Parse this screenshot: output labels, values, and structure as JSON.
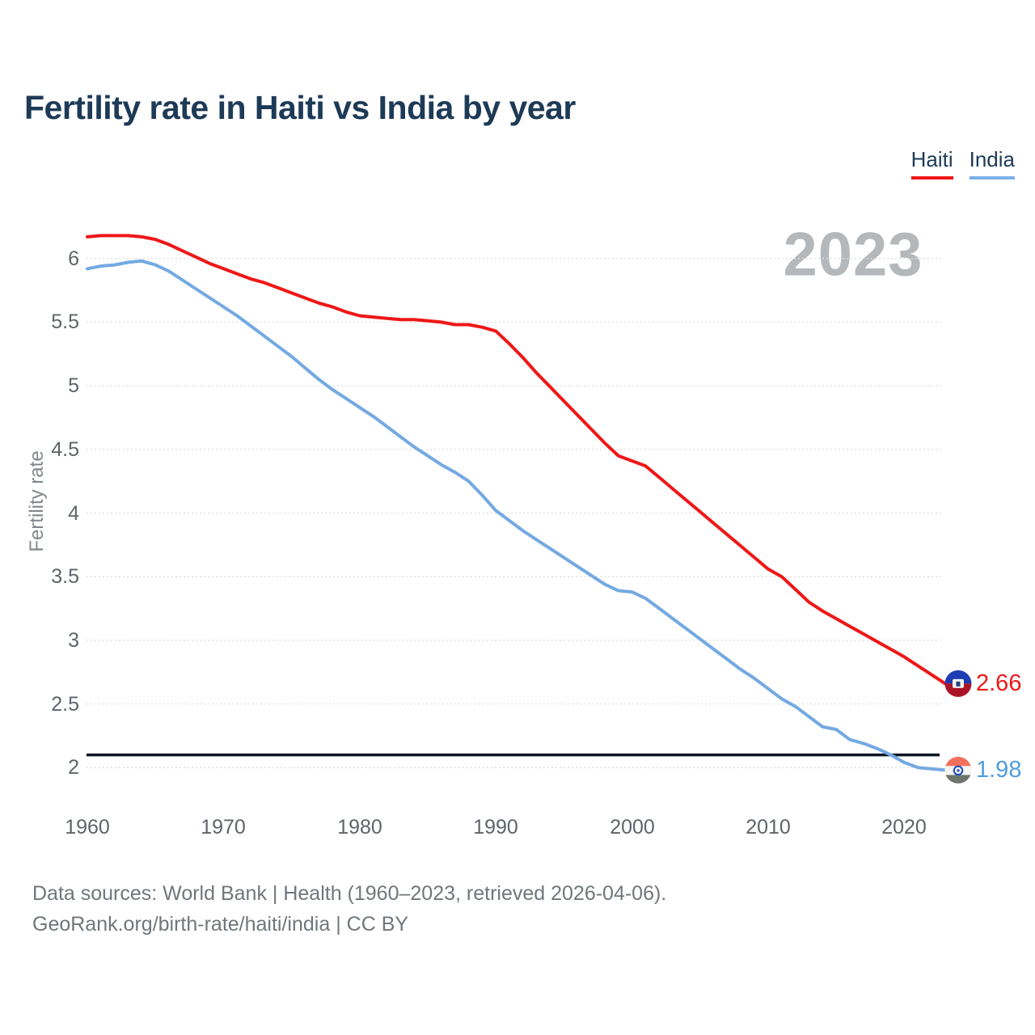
{
  "header": {
    "title": "Fertility rate in Haiti vs India by year"
  },
  "legend": {
    "items": [
      {
        "label": "Haiti",
        "color": "#ef1717"
      },
      {
        "label": "India",
        "color": "#7ab0e8"
      }
    ]
  },
  "watermark": {
    "year": "2023"
  },
  "axes": {
    "y_label": "Fertility rate"
  },
  "series_end": {
    "haiti_value": "2.66",
    "india_value": "1.98"
  },
  "footer": {
    "line1": "Data sources: World Bank | Health (1960–2023, retrieved 2026-04-06).",
    "line2": "GeoRank.org/birth-rate/haiti/india | CC BY"
  },
  "colors": {
    "haiti_line": "#ef1717",
    "india_line": "#74a9e2",
    "threshold_black": "#0d1423",
    "gridline": "#dfdfdf",
    "title_navy": "#1d3a57",
    "tick_gray": "#5f646a",
    "watermark_gray": "#b5b8bb"
  },
  "flags": {
    "haiti": {
      "top": "#1e3cb4",
      "bottom": "#ab1326",
      "emblem_bg": "#f2f3ee",
      "emblem_fg": "#27417c"
    },
    "india": {
      "top": "#f4705c",
      "middle": "#f5f6f4",
      "bottom": "#6d756d",
      "chakra": "#2a52c0"
    }
  },
  "chart_data": {
    "type": "line",
    "title": "Fertility rate in Haiti vs India by year",
    "xlabel": "",
    "ylabel": "Fertility rate",
    "x_start": 1960,
    "x_end": 2023,
    "current_year_badge": "2023",
    "x_ticks": [
      1960,
      1970,
      1980,
      1990,
      2000,
      2010,
      2020
    ],
    "y_ticks": [
      2,
      2.5,
      3,
      3.5,
      4,
      4.5,
      5,
      5.5,
      6
    ],
    "ylim": [
      1.9,
      6.3
    ],
    "grid": true,
    "legend_position": "top-right",
    "threshold_line": {
      "value": 2.1,
      "color": "#0d1423"
    },
    "series": [
      {
        "name": "Haiti",
        "color": "#ef1717",
        "end_label": "2.66",
        "values": [
          6.17,
          6.18,
          6.18,
          6.18,
          6.17,
          6.15,
          6.11,
          6.06,
          6.01,
          5.96,
          5.92,
          5.88,
          5.84,
          5.81,
          5.77,
          5.73,
          5.69,
          5.65,
          5.62,
          5.58,
          5.55,
          5.54,
          5.53,
          5.52,
          5.52,
          5.51,
          5.5,
          5.48,
          5.48,
          5.46,
          5.43,
          5.33,
          5.22,
          5.1,
          4.99,
          4.88,
          4.77,
          4.66,
          4.55,
          4.45,
          4.41,
          4.37,
          4.28,
          4.19,
          4.1,
          4.01,
          3.92,
          3.83,
          3.74,
          3.65,
          3.56,
          3.5,
          3.4,
          3.3,
          3.23,
          3.17,
          3.11,
          3.05,
          2.99,
          2.93,
          2.87,
          2.8,
          2.73,
          2.66
        ]
      },
      {
        "name": "India",
        "color": "#74a9e2",
        "end_label": "1.98",
        "values": [
          5.92,
          5.94,
          5.95,
          5.97,
          5.98,
          5.95,
          5.9,
          5.83,
          5.76,
          5.69,
          5.62,
          5.55,
          5.47,
          5.39,
          5.31,
          5.23,
          5.14,
          5.05,
          4.97,
          4.9,
          4.83,
          4.76,
          4.68,
          4.6,
          4.52,
          4.45,
          4.38,
          4.32,
          4.25,
          4.14,
          4.02,
          3.94,
          3.86,
          3.79,
          3.72,
          3.65,
          3.58,
          3.51,
          3.44,
          3.39,
          3.38,
          3.33,
          3.25,
          3.17,
          3.09,
          3.01,
          2.93,
          2.85,
          2.77,
          2.7,
          2.62,
          2.54,
          2.48,
          2.4,
          2.32,
          2.3,
          2.22,
          2.19,
          2.15,
          2.1,
          2.04,
          2.0,
          1.99,
          1.98
        ]
      }
    ]
  }
}
